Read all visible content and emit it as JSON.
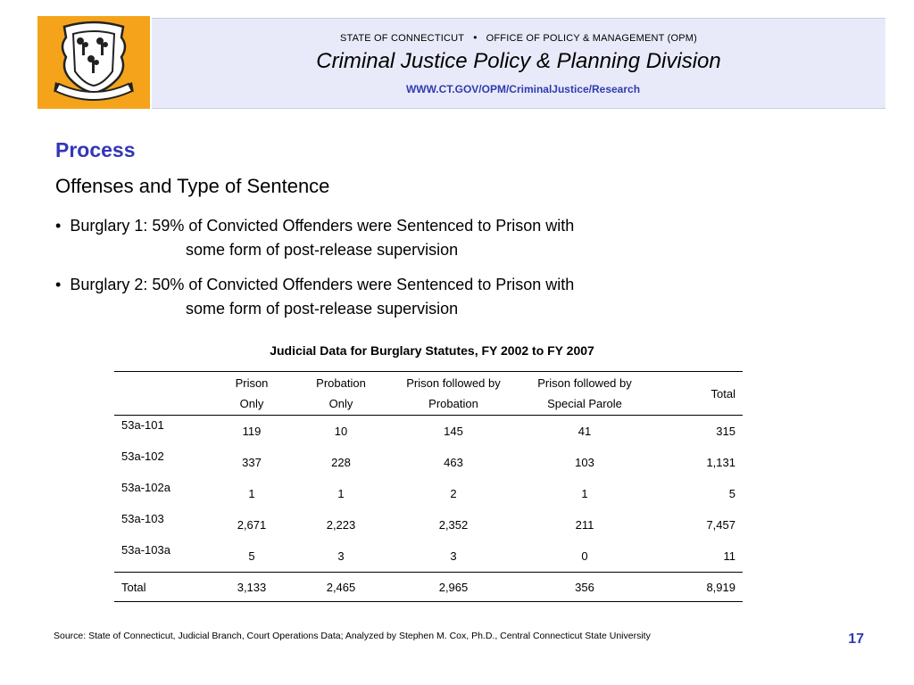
{
  "header": {
    "line1_left": "STATE OF CONNECTICUT",
    "line1_separator": "•",
    "line1_right": "OFFICE OF POLICY & MANAGEMENT (OPM)",
    "division": "Criminal Justice Policy & Planning Division",
    "url": "WWW.CT.GOV/OPM/CriminalJustice/Research",
    "band_color": "#e9eaf9",
    "logo_color": "#f5a31a",
    "logo_icon": "connecticut-seal-icon"
  },
  "section_title": "Process",
  "subtitle": "Offenses and Type of Sentence",
  "bullets": [
    {
      "marker": "•",
      "line1": "Burglary 1:  59% of Convicted Offenders were Sentenced to Prison with",
      "line2": "some form of post-release supervision"
    },
    {
      "marker": "•",
      "line1": "Burglary 2:  50% of Convicted Offenders were Sentenced to Prison with",
      "line2": "some form of post-release supervision"
    }
  ],
  "table": {
    "title": "Judicial Data for Burglary Statutes, FY 2002 to FY 2007",
    "headers": [
      {
        "l1": "",
        "l2": ""
      },
      {
        "l1": "Prison",
        "l2": "Only"
      },
      {
        "l1": "Probation",
        "l2": "Only"
      },
      {
        "l1": "Prison followed by",
        "l2": "Probation"
      },
      {
        "l1": "Prison followed by",
        "l2": "Special Parole"
      },
      {
        "l1": "Total",
        "l2": ""
      }
    ],
    "rows": [
      [
        "53a-101",
        "119",
        "10",
        "145",
        "41",
        "315"
      ],
      [
        "53a-102",
        "337",
        "228",
        "463",
        "103",
        "1,131"
      ],
      [
        "53a-102a",
        "1",
        "1",
        "2",
        "1",
        "5"
      ],
      [
        "53a-103",
        "2,671",
        "2,223",
        "2,352",
        "211",
        "7,457"
      ],
      [
        "53a-103a",
        "5",
        "3",
        "3",
        "0",
        "11"
      ]
    ],
    "total_row": [
      "Total",
      "3,133",
      "2,465",
      "2,965",
      "356",
      "8,919"
    ]
  },
  "source": "Source: State of Connecticut, Judicial Branch, Court Operations Data; Analyzed by Stephen M. Cox, Ph.D., Central Connecticut State University",
  "page_number": "17"
}
